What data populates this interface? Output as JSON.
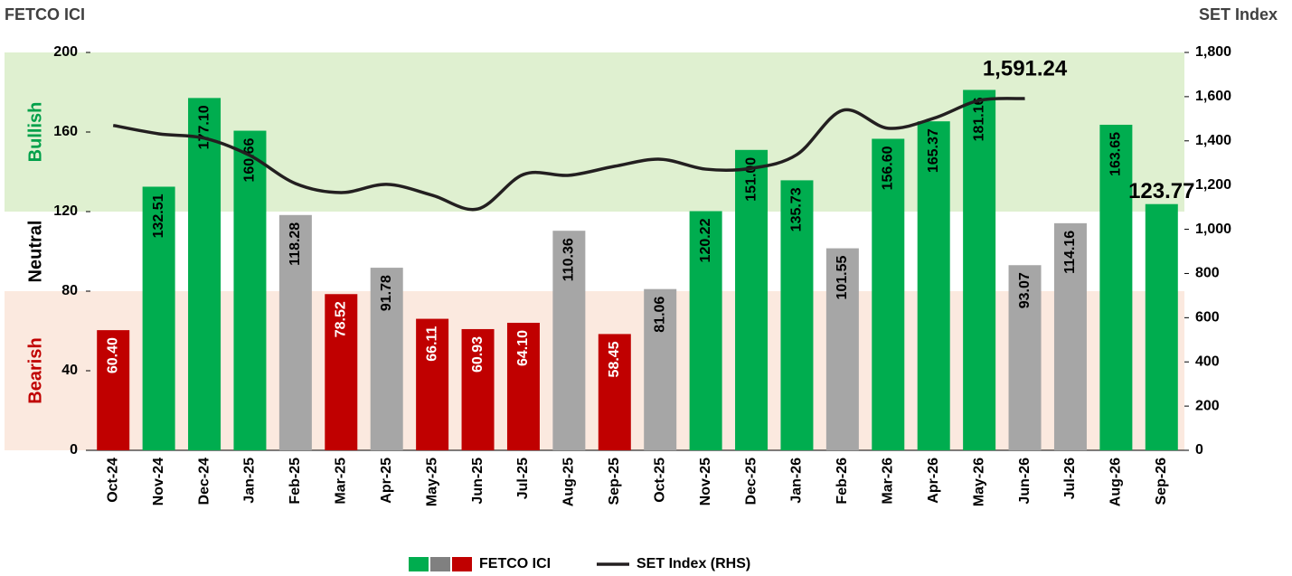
{
  "chart_data": {
    "type": "bar",
    "y_title": "FETCO ICI",
    "y2_title": "SET Index",
    "categories": [
      "Oct-24",
      "Nov-24",
      "Dec-24",
      "Jan-25",
      "Feb-25",
      "Mar-25",
      "Apr-25",
      "May-25",
      "Jun-25",
      "Jul-25",
      "Aug-25",
      "Sep-25",
      "Oct-25",
      "Nov-25",
      "Dec-25",
      "Jan-26",
      "Feb-26",
      "Mar-26",
      "Apr-26",
      "May-26",
      "Jun-26",
      "Jul-26",
      "Aug-26",
      "Sep-26"
    ],
    "ylim": [
      0,
      200
    ],
    "yticks": [
      0,
      40,
      80,
      120,
      160,
      200
    ],
    "y2lim": [
      0,
      1800
    ],
    "y2ticks": [
      0,
      200,
      400,
      600,
      800,
      {
        "value": 1000,
        "label": "1,000"
      },
      {
        "value": 1200,
        "label": "1,200"
      },
      {
        "value": 1400,
        "label": "1,400"
      },
      {
        "value": 1600,
        "label": "1,600"
      },
      {
        "value": 1800,
        "label": "1,800"
      }
    ],
    "bands": [
      {
        "label": "Bullish",
        "from": 120,
        "to": 200,
        "color": "#dff0d0"
      },
      {
        "label": "Neutral",
        "from": 80,
        "to": 120,
        "color": "#ffffff"
      },
      {
        "label": "Bearish",
        "from": 0,
        "to": 80,
        "color": "#fbe9df"
      }
    ],
    "band_label_colors": [
      "#00a04a",
      "#000000",
      "#c00000"
    ],
    "highlight_last_label": true,
    "series": [
      {
        "name": "FETCO ICI",
        "type": "bar",
        "values": [
          60.4,
          132.51,
          177.1,
          160.66,
          118.28,
          78.52,
          91.78,
          66.11,
          60.93,
          64.1,
          110.36,
          58.45,
          81.06,
          120.22,
          151.0,
          135.73,
          101.55,
          156.6,
          165.37,
          181.16,
          93.07,
          114.16,
          163.65,
          123.77
        ],
        "value_labels": [
          "60.40",
          "132.51",
          "177.10",
          "160.66",
          "118.28",
          "78.52",
          "91.78",
          "66.11",
          "60.93",
          "64.10",
          "110.36",
          "58.45",
          "81.06",
          "120.22",
          "151.00",
          "135.73",
          "101.55",
          "156.60",
          "165.37",
          "181.16",
          "93.07",
          "114.16",
          "163.65",
          "123.77"
        ],
        "colors": [
          "#c00000",
          "#00ad4f",
          "#00ad4f",
          "#00ad4f",
          "#a6a6a6",
          "#c00000",
          "#a6a6a6",
          "#c00000",
          "#c00000",
          "#c00000",
          "#a6a6a6",
          "#c00000",
          "#a6a6a6",
          "#00ad4f",
          "#00ad4f",
          "#00ad4f",
          "#a6a6a6",
          "#00ad4f",
          "#00ad4f",
          "#00ad4f",
          "#a6a6a6",
          "#a6a6a6",
          "#00ad4f",
          "#00ad4f"
        ],
        "legend_colors": [
          "#00ad4f",
          "#808080",
          "#c00000"
        ]
      },
      {
        "name": "SET Index (RHS)",
        "type": "line",
        "axis": "y2",
        "color": "#231f20",
        "values": [
          1470,
          1432,
          1412,
          1334,
          1207,
          1166,
          1203,
          1154,
          1092,
          1248,
          1244,
          1285,
          1317,
          1272,
          1276,
          1338,
          1538,
          1457,
          1502,
          1583,
          1591.24,
          null,
          null,
          null
        ],
        "value_labels": [
          null,
          null,
          null,
          null,
          null,
          null,
          null,
          null,
          null,
          null,
          null,
          null,
          null,
          null,
          null,
          null,
          null,
          null,
          null,
          null,
          "1,591.24",
          null,
          null,
          null
        ]
      }
    ]
  }
}
